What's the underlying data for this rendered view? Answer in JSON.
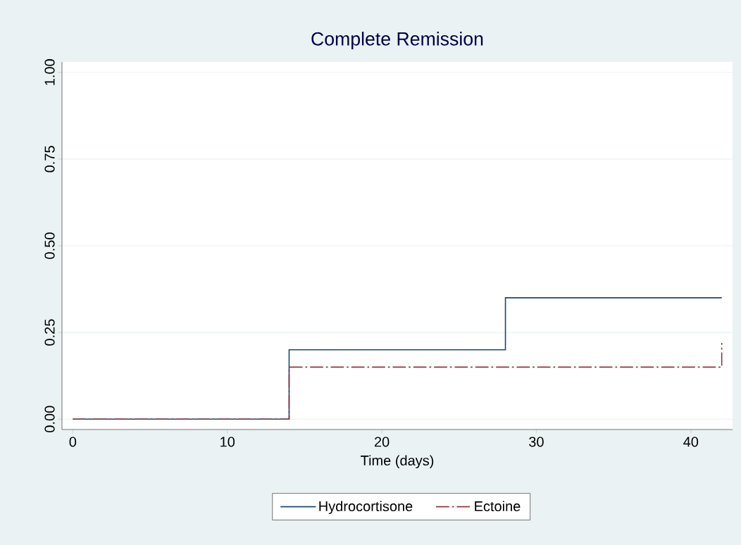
{
  "chart_data": {
    "type": "step",
    "title": "Complete Remission",
    "xlabel": "Time (days)",
    "series": [
      {
        "name": "Hydrocortisone",
        "color": "#1a476f",
        "x": [
          0,
          14,
          28,
          42
        ],
        "values": [
          0,
          0.2,
          0.35,
          0.35
        ],
        "line_style": "solid"
      },
      {
        "name": "Ectoine",
        "color": "#90353b",
        "x": [
          0,
          14,
          42
        ],
        "values": [
          0,
          0.15,
          0.22
        ],
        "line_style": "dashdot"
      }
    ],
    "xlim": [
      -0.7,
      42.7
    ],
    "ylim": [
      -0.03,
      1.03
    ],
    "xticks": [
      0,
      10,
      20,
      30,
      40
    ],
    "yticks": [
      {
        "value": 0,
        "label": "0.00"
      },
      {
        "value": 0.25,
        "label": "0.25"
      },
      {
        "value": 0.5,
        "label": "0.50"
      },
      {
        "value": 0.75,
        "label": "0.75"
      },
      {
        "value": 1,
        "label": "1.00"
      }
    ],
    "grid": "y",
    "legend": "bottom",
    "marker": "none"
  }
}
